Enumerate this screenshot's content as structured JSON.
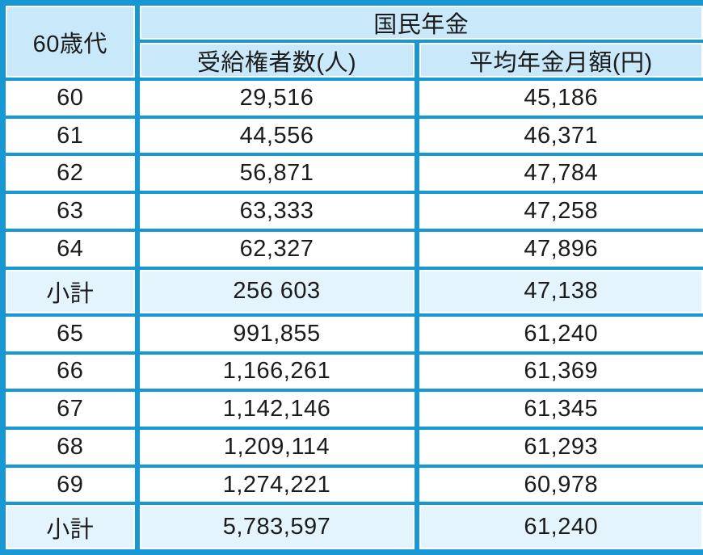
{
  "colors": {
    "grid_blue": "#1798d4",
    "header_bg": "#c9e9fa",
    "subtotal_bg": "#e4f4fc",
    "cell_bg": "#ffffff",
    "text": "#1b1b1b"
  },
  "chart_data": {
    "type": "table",
    "title": "国民年金",
    "corner_header": "60歳代",
    "group_header": "国民年金",
    "columns": [
      "受給権者数(人)",
      "平均年金月額(円)"
    ],
    "subtotal_label": "小計",
    "rows": [
      {
        "age": "60",
        "recipients": "29,516",
        "avg_pension": "45,186",
        "is_subtotal": false
      },
      {
        "age": "61",
        "recipients": "44,556",
        "avg_pension": "46,371",
        "is_subtotal": false
      },
      {
        "age": "62",
        "recipients": "56,871",
        "avg_pension": "47,784",
        "is_subtotal": false
      },
      {
        "age": "63",
        "recipients": "63,333",
        "avg_pension": "47,258",
        "is_subtotal": false
      },
      {
        "age": "64",
        "recipients": "62,327",
        "avg_pension": "47,896",
        "is_subtotal": false
      },
      {
        "age": "小計",
        "recipients": "256 603",
        "avg_pension": "47,138",
        "is_subtotal": true
      },
      {
        "age": "65",
        "recipients": "991,855",
        "avg_pension": "61,240",
        "is_subtotal": false
      },
      {
        "age": "66",
        "recipients": "1,166,261",
        "avg_pension": "61,369",
        "is_subtotal": false
      },
      {
        "age": "67",
        "recipients": "1,142,146",
        "avg_pension": "61,345",
        "is_subtotal": false
      },
      {
        "age": "68",
        "recipients": "1,209,114",
        "avg_pension": "61,293",
        "is_subtotal": false
      },
      {
        "age": "69",
        "recipients": "1,274,221",
        "avg_pension": "60,978",
        "is_subtotal": false
      },
      {
        "age": "小計",
        "recipients": "5,783,597",
        "avg_pension": "61,240",
        "is_subtotal": true
      }
    ]
  }
}
